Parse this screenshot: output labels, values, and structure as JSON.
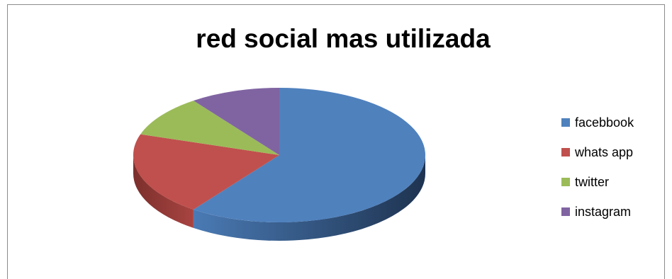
{
  "chart_data": {
    "type": "pie",
    "title": "red social mas utilizada",
    "categories": [
      "facebbook",
      "whats app",
      "twitter",
      "instagram"
    ],
    "values": [
      60,
      20,
      10,
      10
    ],
    "colors": [
      "#4f81bd",
      "#c0504d",
      "#9bbb59",
      "#8064a2"
    ],
    "legend_position": "right",
    "style": "3d"
  }
}
